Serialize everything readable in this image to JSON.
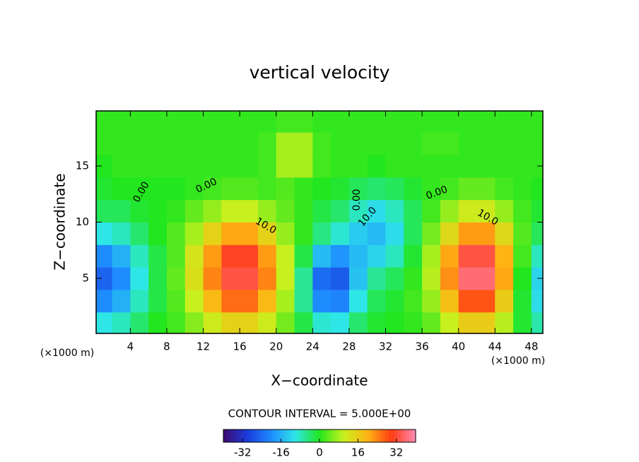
{
  "chart_data": {
    "type": "contour",
    "title": "vertical velocity",
    "xlabel": "X−coordinate",
    "ylabel": "Z−coordinate",
    "x_unit": "(×1000 m)",
    "y_unit": "(×1000 m)",
    "xlim": [
      0.25,
      49.25
    ],
    "ylim": [
      0.1,
      19.9
    ],
    "xticks": [
      4,
      8,
      12,
      16,
      20,
      24,
      28,
      32,
      36,
      40,
      44,
      48
    ],
    "yticks": [
      5,
      10,
      15
    ],
    "x": [
      1,
      3,
      5,
      7,
      9,
      11,
      13,
      15,
      17,
      19,
      21,
      23,
      25,
      27,
      29,
      31,
      33,
      35,
      37,
      39,
      41,
      43,
      45,
      47,
      49
    ],
    "y": [
      1,
      3,
      5,
      7,
      9,
      11,
      13,
      15,
      17,
      19
    ],
    "z": [
      [
        -10,
        -8,
        -4,
        0,
        2,
        6,
        11,
        15,
        15,
        11,
        5,
        -2,
        -9,
        -10,
        -4,
        -1,
        0,
        1,
        4,
        10,
        16,
        16,
        9,
        -1,
        -7
      ],
      [
        -20,
        -16,
        -8,
        -2,
        3,
        10,
        19,
        26,
        26,
        19,
        8,
        -6,
        -20,
        -21,
        -10,
        -3,
        -1,
        2,
        7,
        18,
        28,
        28,
        16,
        -1,
        -11
      ],
      [
        -25,
        -20,
        -10,
        -2,
        4,
        13,
        24,
        33,
        33,
        24,
        10,
        -6,
        -24,
        -26,
        -14,
        -6,
        -3,
        1,
        9,
        23,
        36,
        36,
        21,
        0,
        -12
      ],
      [
        -20,
        -16,
        -8,
        -2,
        3,
        12,
        22,
        31,
        31,
        22,
        10,
        -2,
        -15,
        -19,
        -15,
        -12,
        -8,
        -1,
        8,
        21,
        33,
        33,
        20,
        2,
        -8
      ],
      [
        -10,
        -8,
        -4,
        0,
        3,
        8,
        15,
        21,
        21,
        15,
        7,
        1,
        -5,
        -9,
        -13,
        -15,
        -11,
        -3,
        5,
        14,
        22,
        22,
        14,
        3,
        -3
      ],
      [
        -3,
        -3,
        -1,
        0,
        1,
        4,
        7,
        10,
        10,
        7,
        4,
        1,
        -2,
        -4,
        -8,
        -11,
        -8,
        -3,
        2,
        7,
        11,
        11,
        7,
        2,
        -1
      ],
      [
        -1,
        0,
        0,
        0,
        0,
        1,
        2,
        3,
        3,
        2,
        3,
        1,
        0,
        -1,
        -3,
        -4,
        -3,
        -1,
        1,
        2,
        4,
        4,
        2,
        1,
        0
      ],
      [
        0,
        1,
        1,
        1,
        1,
        1,
        1,
        1,
        1,
        2,
        8,
        8,
        2,
        1,
        1,
        0,
        1,
        1,
        1,
        1,
        1,
        1,
        1,
        1,
        1
      ],
      [
        1,
        1,
        1,
        1,
        1,
        1,
        1,
        1,
        1,
        2,
        8,
        8,
        2,
        1,
        1,
        1,
        1,
        1,
        2,
        2,
        1,
        1,
        1,
        1,
        1
      ],
      [
        1,
        1,
        1,
        1,
        1,
        1,
        1,
        1,
        1,
        1,
        2,
        2,
        1,
        1,
        1,
        1,
        1,
        1,
        1,
        1,
        1,
        1,
        1,
        1,
        1
      ]
    ],
    "colorscale": [
      "#3c0a6e",
      "#1a3cdc",
      "#1e8cff",
      "#2ee6e6",
      "#22e61e",
      "#c8f01e",
      "#ffb414",
      "#ff3c14",
      "#ff8cb4"
    ],
    "clim": [
      -40,
      40
    ],
    "cticks": [
      -32,
      -16,
      0,
      16,
      32
    ],
    "contour_interval_label": "CONTOUR INTERVAL = 5.000E+00",
    "contour_labels": [
      "0.00",
      "0.00",
      "0.00",
      "0.00",
      "10.0",
      "10.0",
      "10.0"
    ]
  }
}
